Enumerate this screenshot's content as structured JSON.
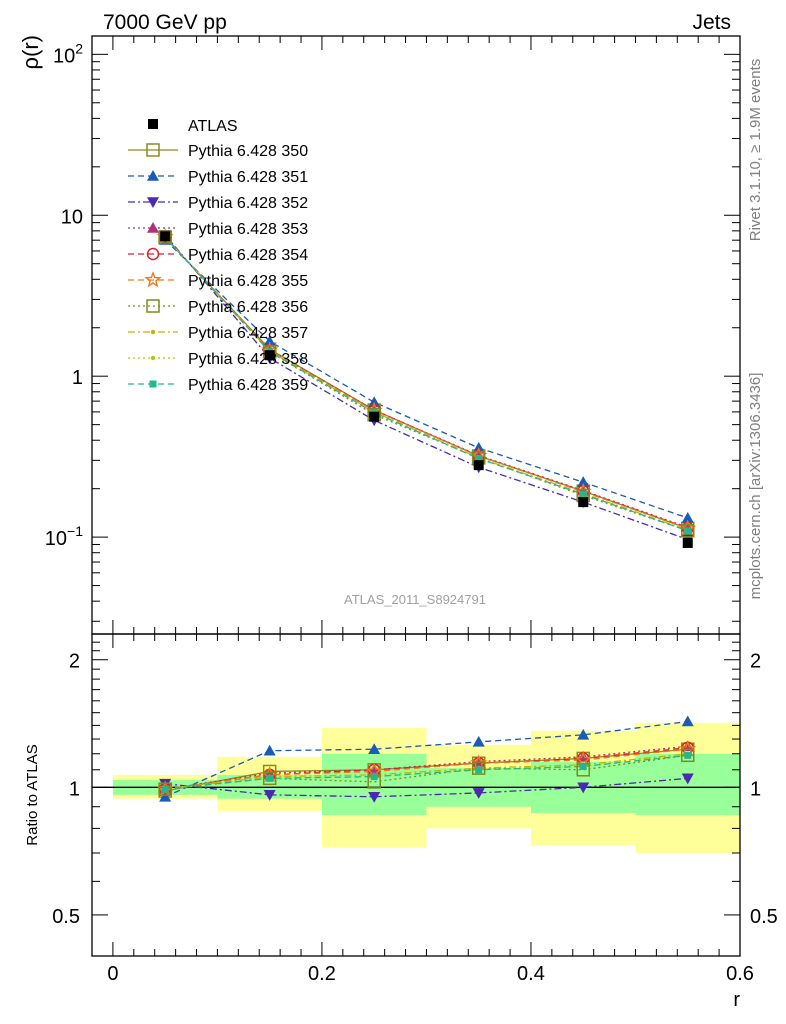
{
  "header": {
    "left": "7000 GeV pp",
    "right": "Jets"
  },
  "side_labels": {
    "top": "Rivet 3.1.10, ≥ 1.9M events",
    "bottom": "mcplots.cern.ch [arXiv:1306.3436]"
  },
  "watermark": "ATLAS_2011_S8924791",
  "chart_data": {
    "type": "line",
    "xlabel": "r",
    "ylabel_main": "ρ(r)",
    "ylabel_ratio": "Ratio to ATLAS",
    "xlim": [
      -0.02,
      0.6
    ],
    "ylim_main": [
      0.025,
      130
    ],
    "ylim_ratio": [
      0.4,
      2.3
    ],
    "yscale_main": "log",
    "yscale_ratio": "log",
    "x_ticks": [
      "0",
      "0.2",
      "0.4",
      "0.6"
    ],
    "main_ticks": [
      "10^{-1}",
      "1",
      "10",
      "10^{2}"
    ],
    "ratio_ticks": [
      "0.5",
      "1",
      "2"
    ],
    "x": [
      0.05,
      0.15,
      0.25,
      0.35,
      0.45,
      0.55
    ],
    "x_edges": [
      0.0,
      0.1,
      0.2,
      0.3,
      0.4,
      0.5,
      0.6
    ],
    "legend_position": "top-left",
    "data": {
      "name": "ATLAS",
      "values": [
        7.4,
        1.35,
        0.56,
        0.28,
        0.165,
        0.092
      ]
    },
    "band_inner": [
      [
        0.96,
        1.04
      ],
      [
        0.94,
        1.07
      ],
      [
        0.86,
        1.2
      ],
      [
        0.9,
        1.11
      ],
      [
        0.87,
        1.15
      ],
      [
        0.86,
        1.2
      ]
    ],
    "band_outer": [
      [
        0.94,
        1.07
      ],
      [
        0.88,
        1.18
      ],
      [
        0.72,
        1.38
      ],
      [
        0.8,
        1.26
      ],
      [
        0.73,
        1.36
      ],
      [
        0.7,
        1.42
      ]
    ],
    "series": [
      {
        "name": "Pythia 6.428 350",
        "color": "#8c8c1e",
        "dash": "solid",
        "marker": "square-open",
        "ratio": [
          0.98,
          1.09,
          1.1,
          1.14,
          1.17,
          1.23
        ]
      },
      {
        "name": "Pythia 6.428 351",
        "color": "#1a5ab8",
        "dash": "dashed",
        "marker": "triangle-up",
        "ratio": [
          0.95,
          1.22,
          1.23,
          1.28,
          1.33,
          1.43
        ]
      },
      {
        "name": "Pythia 6.428 352",
        "color": "#4a2ab0",
        "dash": "dashdot",
        "marker": "triangle-down",
        "ratio": [
          1.02,
          0.96,
          0.95,
          0.97,
          1.0,
          1.05
        ]
      },
      {
        "name": "Pythia 6.428 353",
        "color": "#b0307a",
        "dash": "dotted",
        "marker": "triangle-up",
        "ratio": [
          0.99,
          1.08,
          1.1,
          1.15,
          1.18,
          1.25
        ]
      },
      {
        "name": "Pythia 6.428 354",
        "color": "#d8222a",
        "dash": "dashed",
        "marker": "circle-open",
        "ratio": [
          0.99,
          1.07,
          1.1,
          1.14,
          1.17,
          1.24
        ]
      },
      {
        "name": "Pythia 6.428 355",
        "color": "#f07818",
        "dash": "dashed",
        "marker": "star-open",
        "ratio": [
          0.99,
          1.07,
          1.09,
          1.14,
          1.16,
          1.23
        ]
      },
      {
        "name": "Pythia 6.428 356",
        "color": "#7d8c1a",
        "dash": "dotted",
        "marker": "square-open",
        "ratio": [
          0.99,
          1.05,
          1.03,
          1.11,
          1.1,
          1.19
        ]
      },
      {
        "name": "Pythia 6.428 357",
        "color": "#c8b400",
        "dash": "dashdot",
        "marker": "dot",
        "ratio": [
          0.99,
          1.06,
          1.07,
          1.11,
          1.13,
          1.2
        ]
      },
      {
        "name": "Pythia 6.428 358",
        "color": "#a8d000",
        "dash": "dotted",
        "marker": "dot",
        "ratio": [
          0.99,
          1.05,
          1.06,
          1.1,
          1.12,
          1.19
        ]
      },
      {
        "name": "Pythia 6.428 359",
        "color": "#20b88c",
        "dash": "dashed",
        "marker": "square-filled",
        "ratio": [
          0.99,
          1.05,
          1.06,
          1.1,
          1.12,
          1.19
        ]
      }
    ]
  }
}
